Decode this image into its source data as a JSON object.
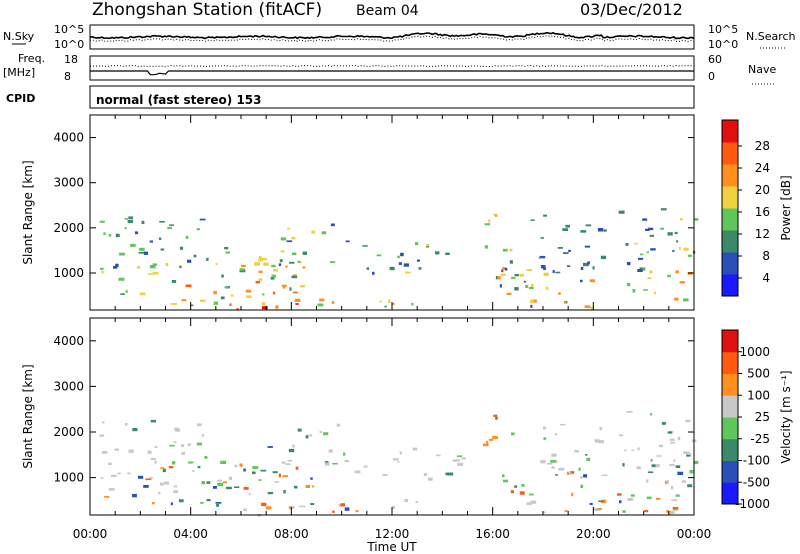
{
  "header": {
    "station": "Zhongshan Station (fitACF)",
    "beam": "Beam 04",
    "date": "03/Dec/2012"
  },
  "noise_panel": {
    "left_label": "N.Sky",
    "right_label": "N.Search",
    "right_ticks": [
      "10^5",
      "10^0"
    ],
    "left_ticks": [
      "10^5",
      "10^0"
    ]
  },
  "freq_panel": {
    "left_label_1": "Freq.",
    "left_label_2": "[MHz]",
    "left_ticks": [
      "18",
      "8"
    ],
    "right_label": "Nave",
    "right_ticks": [
      "60",
      "0"
    ]
  },
  "cpid": {
    "label": "CPID",
    "mode": "normal (fast stereo) 153"
  },
  "chart_data": [
    {
      "type": "heatmap",
      "title": "",
      "ylabel": "Slant Range [km]",
      "xlabel": "",
      "y_ticks": [
        "1000",
        "2000",
        "3000",
        "4000"
      ],
      "ylim": [
        180,
        4500
      ],
      "colorbar_label": "Power [dB]",
      "colorbar_ticks": [
        "4",
        "8",
        "12",
        "16",
        "20",
        "24",
        "28"
      ],
      "colors": [
        "#1a1aff",
        "#2a4fb8",
        "#3a8a6a",
        "#5fc65a",
        "#f0d040",
        "#ff9020",
        "#ff5a10",
        "#e01010"
      ]
    },
    {
      "type": "heatmap",
      "title": "",
      "ylabel": "Slant Range [km]",
      "xlabel": "Time UT",
      "x_ticks": [
        "00:00",
        "04:00",
        "08:00",
        "12:00",
        "16:00",
        "20:00",
        "00:00"
      ],
      "y_ticks": [
        "1000",
        "2000",
        "3000",
        "4000"
      ],
      "ylim": [
        180,
        4500
      ],
      "colorbar_label": "Velocity [m s⁻¹]",
      "colorbar_ticks": [
        "1000",
        "500",
        "100",
        "25",
        "-25",
        "-100",
        "-500",
        "-1000"
      ],
      "colors": [
        "#1a1aff",
        "#2a4fb8",
        "#3a8a6a",
        "#5fc65a",
        "#c8c8c8",
        "#ff9020",
        "#ff5a10",
        "#e01010"
      ]
    }
  ]
}
